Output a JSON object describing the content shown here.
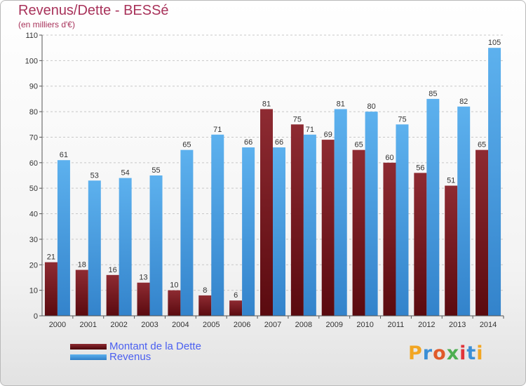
{
  "title": "Revenus/Dette - BESSé",
  "subtitle": "(en milliers d'€)",
  "logo_text": "Proxiti",
  "colors": {
    "dette": "#7a1e25",
    "revenus": "#4ea3e6",
    "title": "#a8325a",
    "legend_text": "#4a5ff0"
  },
  "chart_data": {
    "type": "bar",
    "title": "Revenus/Dette - BESSé",
    "subtitle": "(en milliers d'€)",
    "categories": [
      "2000",
      "2001",
      "2002",
      "2003",
      "2004",
      "2005",
      "2006",
      "2007",
      "2008",
      "2009",
      "2010",
      "2011",
      "2012",
      "2013",
      "2014"
    ],
    "series": [
      {
        "name": "Montant de la Dette",
        "values": [
          21,
          18,
          16,
          13,
          10,
          8,
          6,
          81,
          75,
          69,
          65,
          60,
          56,
          51,
          65
        ]
      },
      {
        "name": "Revenus",
        "values": [
          61,
          53,
          54,
          55,
          65,
          71,
          66,
          66,
          71,
          81,
          80,
          75,
          85,
          82,
          105
        ]
      }
    ],
    "ylim": [
      0,
      110
    ],
    "yticks": [
      0,
      10,
      20,
      30,
      40,
      50,
      60,
      70,
      80,
      90,
      100,
      110
    ],
    "grid": true,
    "legend_position": "bottom-left"
  }
}
